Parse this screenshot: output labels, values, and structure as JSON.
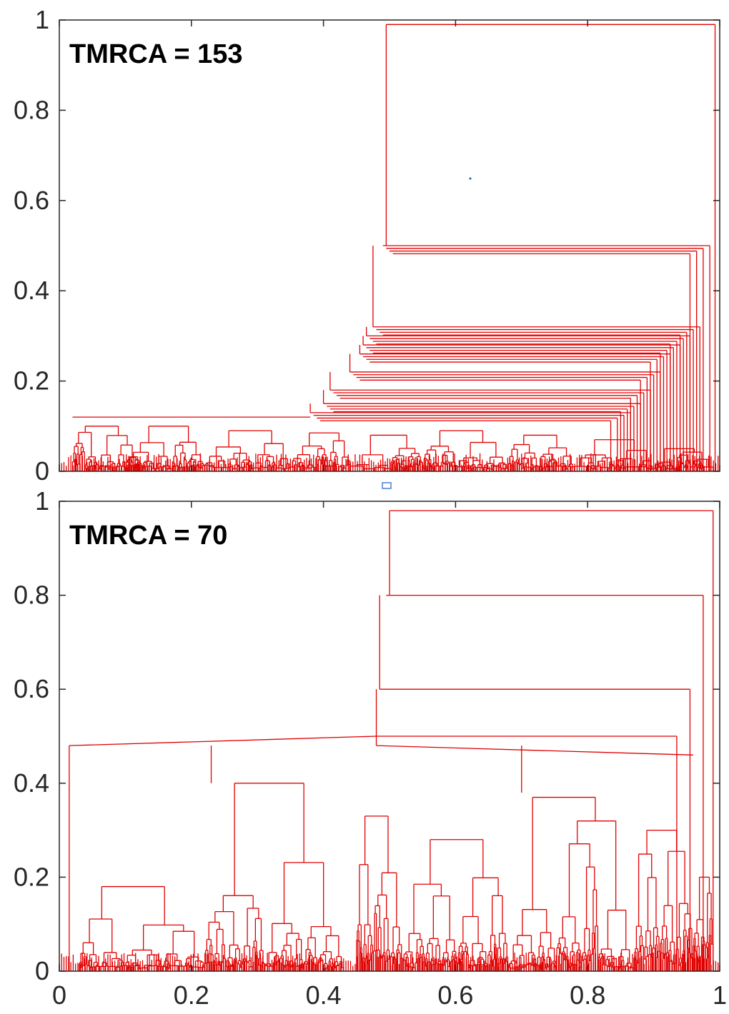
{
  "colors": {
    "tree": "#e00000",
    "axes": "#262626",
    "background": "#ffffff"
  },
  "chart_data": [
    {
      "type": "line",
      "description_type": "coalescent-tree",
      "annotation": "TMRCA = 153",
      "xlim": [
        0,
        1
      ],
      "ylim": [
        0,
        1
      ],
      "xticks": [],
      "yticks": [
        "0",
        "0.2",
        "0.4",
        "0.6",
        "0.8",
        "1"
      ],
      "grid": false,
      "root_height": 0.99,
      "split_x": 0.495,
      "left_subtree_height": 0.12,
      "right_nested_merges": [
        {
          "x_start": 0.49,
          "height": 0.5
        },
        {
          "x_start": 0.475,
          "height": 0.32
        },
        {
          "x_start": 0.465,
          "height": 0.3
        },
        {
          "x_start": 0.46,
          "height": 0.28
        },
        {
          "x_start": 0.455,
          "height": 0.26
        },
        {
          "x_start": 0.44,
          "height": 0.22
        },
        {
          "x_start": 0.41,
          "height": 0.18
        },
        {
          "x_start": 0.4,
          "height": 0.15
        },
        {
          "x_start": 0.38,
          "height": 0.13
        }
      ]
    },
    {
      "type": "line",
      "description_type": "coalescent-tree",
      "annotation": "TMRCA = 70",
      "xlim": [
        0,
        1
      ],
      "ylim": [
        0,
        1
      ],
      "xticks": [
        "0",
        "0.2",
        "0.4",
        "0.6",
        "0.8",
        "1"
      ],
      "yticks": [
        "0",
        "0.2",
        "0.4",
        "0.6",
        "0.8",
        "1"
      ],
      "grid": false,
      "root_height": 0.98,
      "split_x": 0.5,
      "upper_nested_merges": [
        {
          "x_start": 0.495,
          "height": 0.8
        },
        {
          "x_start": 0.485,
          "height": 0.6
        },
        {
          "x_start": 0.48,
          "height": 0.5
        }
      ],
      "left_subtree_height": 0.48
    }
  ]
}
